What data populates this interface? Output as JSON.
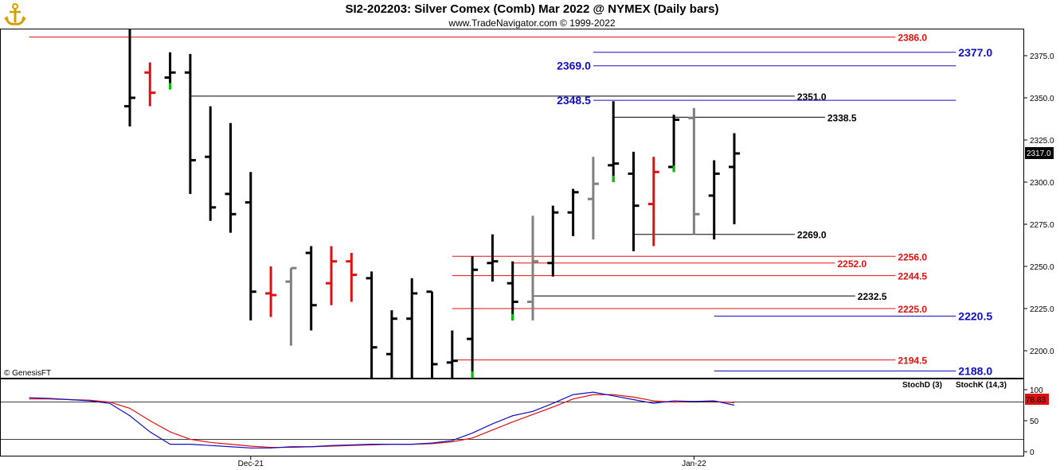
{
  "header": {
    "title": "SI2-202203:  Silver Comex (Comb) Mar 2022 @ NYMEX  (Daily bars)",
    "subtitle": "www.TradeNavigator.com © 1999-2022",
    "logo_icon": "anchor-logo-icon"
  },
  "copyright_label": "© GenesisFT",
  "colors": {
    "up": "#000000",
    "down": "#e01010",
    "neutral": "#808080",
    "signal": "#00c000",
    "red_level": "#e01010",
    "blue_level": "#1010c0",
    "black_level": "#000000",
    "stoch_d": "#e01010",
    "stoch_k": "#1010c0"
  },
  "chart_data": {
    "type": "ohlc",
    "price_axis": {
      "min": 2180,
      "max": 2400,
      "ticks": [
        2200.0,
        2225.0,
        2250.0,
        2275.0,
        2300.0,
        2325.0,
        2350.0,
        2375.0
      ]
    },
    "last_price_label": "2317.0",
    "x_labels": [
      {
        "label": "Dec-21",
        "bar": 6
      },
      {
        "label": "Jan-22",
        "bar": 28
      }
    ],
    "bars": [
      {
        "o": 2345,
        "h": 2395,
        "l": 2333,
        "c": 2350,
        "color": "black"
      },
      {
        "o": 2365,
        "h": 2371,
        "l": 2345,
        "c": 2353,
        "color": "red"
      },
      {
        "o": 2362,
        "h": 2377,
        "l": 2355,
        "c": 2365,
        "color": "black",
        "tick": "green"
      },
      {
        "o": 2365,
        "h": 2376,
        "l": 2293,
        "c": 2313,
        "color": "black"
      },
      {
        "o": 2315,
        "h": 2345,
        "l": 2277,
        "c": 2285,
        "color": "black"
      },
      {
        "o": 2293,
        "h": 2335,
        "l": 2270,
        "c": 2281,
        "color": "black"
      },
      {
        "o": 2288,
        "h": 2306,
        "l": 2218,
        "c": 2235,
        "color": "black"
      },
      {
        "o": 2234,
        "h": 2250,
        "l": 2220,
        "c": 2233,
        "color": "red"
      },
      {
        "o": 2241,
        "h": 2249,
        "l": 2203,
        "c": 2249,
        "color": "gray"
      },
      {
        "o": 2258,
        "h": 2262,
        "l": 2212,
        "c": 2227,
        "color": "black"
      },
      {
        "o": 2240,
        "h": 2262,
        "l": 2227,
        "c": 2253,
        "color": "red"
      },
      {
        "o": 2253,
        "h": 2258,
        "l": 2229,
        "c": 2245,
        "color": "red"
      },
      {
        "o": 2243,
        "h": 2247,
        "l": 2180,
        "c": 2202,
        "color": "black"
      },
      {
        "o": 2198,
        "h": 2224,
        "l": 2180,
        "c": 2219,
        "color": "black"
      },
      {
        "o": 2219,
        "h": 2243,
        "l": 2180,
        "c": 2234,
        "color": "black"
      },
      {
        "o": 2235,
        "h": 2235,
        "l": 2180,
        "c": 2192,
        "color": "black"
      },
      {
        "o": 2193,
        "h": 2212,
        "l": 2180,
        "c": 2194,
        "color": "black"
      },
      {
        "o": 2207,
        "h": 2256,
        "l": 2180,
        "c": 2248,
        "color": "black",
        "tick": "green"
      },
      {
        "o": 2252,
        "h": 2269,
        "l": 2241,
        "c": 2253,
        "color": "black"
      },
      {
        "o": 2240,
        "h": 2253,
        "l": 2218,
        "c": 2229,
        "color": "black",
        "tick": "green"
      },
      {
        "o": 2229,
        "h": 2280,
        "l": 2218,
        "c": 2253,
        "color": "gray"
      },
      {
        "o": 2252,
        "h": 2286,
        "l": 2244,
        "c": 2282,
        "color": "black"
      },
      {
        "o": 2282,
        "h": 2296,
        "l": 2268,
        "c": 2294,
        "color": "black"
      },
      {
        "o": 2290,
        "h": 2315,
        "l": 2266,
        "c": 2299,
        "color": "gray"
      },
      {
        "o": 2310,
        "h": 2348,
        "l": 2300,
        "c": 2311,
        "color": "black",
        "tick": "green"
      },
      {
        "o": 2305,
        "h": 2318,
        "l": 2259,
        "c": 2286,
        "color": "black"
      },
      {
        "o": 2287,
        "h": 2315,
        "l": 2262,
        "c": 2306,
        "color": "red"
      },
      {
        "o": 2309,
        "h": 2340,
        "l": 2306,
        "c": 2337,
        "color": "black",
        "tick": "green"
      },
      {
        "o": 2338,
        "h": 2344,
        "l": 2269,
        "c": 2281,
        "color": "gray"
      },
      {
        "o": 2292,
        "h": 2313,
        "l": 2266,
        "c": 2305,
        "color": "black"
      },
      {
        "o": 2309,
        "h": 2329,
        "l": 2275,
        "c": 2317,
        "color": "black"
      }
    ],
    "levels": [
      {
        "value": 2386.0,
        "label": "2386.0",
        "color": "red",
        "x0": -5,
        "x1": 38
      },
      {
        "value": 2377.0,
        "label": "2377.0",
        "color": "blue",
        "x0": 23,
        "x1": 41,
        "big": true
      },
      {
        "value": 2369.0,
        "label": "2369.0",
        "color": "blue",
        "x0": 23,
        "x1": 41,
        "label_left": true,
        "big": true
      },
      {
        "value": 2351.0,
        "label": "2351.0",
        "color": "black",
        "x0": 3,
        "x1": 33
      },
      {
        "value": 2348.5,
        "label": "2348.5",
        "color": "blue",
        "x0": 23,
        "x1": 41,
        "label_left": true,
        "big": true
      },
      {
        "value": 2338.5,
        "label": "2338.5",
        "color": "black",
        "x0": 24,
        "x1": 34.5
      },
      {
        "value": 2269.0,
        "label": "2269.0",
        "color": "black",
        "x0": 25,
        "x1": 33
      },
      {
        "value": 2256.0,
        "label": "2256.0",
        "color": "red",
        "x0": 16,
        "x1": 38
      },
      {
        "value": 2252.0,
        "label": "2252.0",
        "color": "red",
        "x0": 19,
        "x1": 35
      },
      {
        "value": 2244.5,
        "label": "2244.5",
        "color": "red",
        "x0": 16,
        "x1": 38
      },
      {
        "value": 2232.5,
        "label": "2232.5",
        "color": "black",
        "x0": 20,
        "x1": 36
      },
      {
        "value": 2225.0,
        "label": "2225.0",
        "color": "red",
        "x0": 16,
        "x1": 38
      },
      {
        "value": 2220.5,
        "label": "2220.5",
        "color": "blue",
        "x0": 29,
        "x1": 41,
        "big": true
      },
      {
        "value": 2194.5,
        "label": "2194.5",
        "color": "red",
        "x0": 16,
        "x1": 38
      },
      {
        "value": 2188.0,
        "label": "2188.0",
        "color": "blue",
        "x0": 29,
        "x1": 41,
        "big": true
      }
    ],
    "stochastic": {
      "axis_ticks": [
        0,
        50,
        100
      ],
      "overbought": 80,
      "oversold": 20,
      "last_label": "78.83",
      "stoch_d_label": "StochD (3)",
      "stoch_k_label": "StochK (14,3)",
      "x": [
        -5,
        -4,
        -3,
        -2,
        -1,
        0,
        1,
        2,
        3,
        4,
        5,
        6,
        7,
        8,
        9,
        10,
        11,
        12,
        13,
        14,
        15,
        16,
        17,
        18,
        19,
        20,
        21,
        22,
        23,
        24,
        25,
        26,
        27,
        28,
        29,
        30
      ],
      "k": [
        87,
        86,
        84,
        82,
        78,
        58,
        32,
        12,
        12,
        10,
        8,
        6,
        6,
        8,
        8,
        10,
        11,
        12,
        12,
        12,
        14,
        18,
        30,
        45,
        58,
        65,
        78,
        92,
        96,
        90,
        84,
        78,
        82,
        81,
        82,
        75
      ],
      "d": [
        85,
        85,
        84,
        83,
        80,
        70,
        50,
        32,
        20,
        15,
        12,
        9,
        7,
        7,
        8,
        9,
        10,
        11,
        12,
        12,
        13,
        16,
        22,
        35,
        48,
        60,
        72,
        85,
        92,
        92,
        88,
        82,
        80,
        81,
        81,
        79
      ]
    }
  }
}
